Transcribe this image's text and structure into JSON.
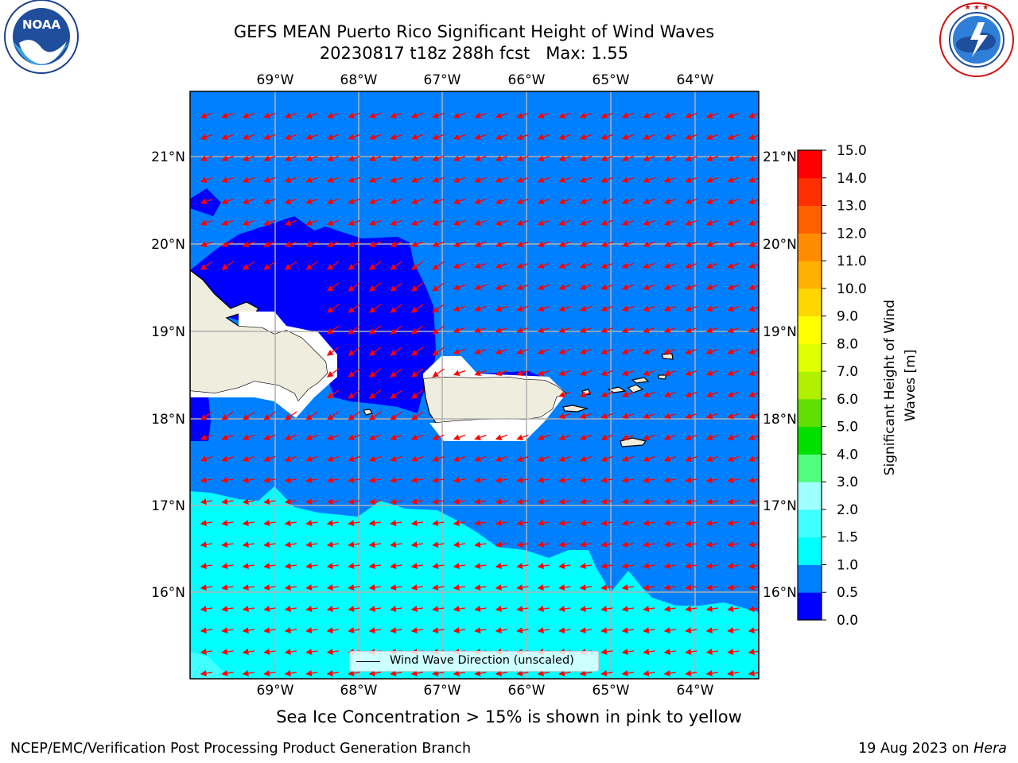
{
  "title": {
    "line1": "GEFS MEAN Puerto Rico Significant Height of Wind Waves",
    "line2": "20230817 t18z 288h fcst   Max: 1.55"
  },
  "logos": {
    "left": {
      "name": "noaa-logo",
      "text": "NOAA",
      "ring_text": "NATIONAL OCEANIC AND ATMOSPHERIC ADMINISTRATION · U.S. DEPARTMENT OF COMMERCE"
    },
    "right": {
      "name": "nws-logo",
      "ring_text": "NATIONAL WEATHER SERVICE"
    }
  },
  "map": {
    "longitude_ticks": [
      "69°W",
      "68°W",
      "67°W",
      "66°W",
      "65°W",
      "64°W"
    ],
    "latitude_ticks": [
      "21°N",
      "20°N",
      "19°N",
      "18°N",
      "17°N",
      "16°N"
    ],
    "lon_range": [
      -70.0,
      -63.25
    ],
    "lat_range": [
      15.0,
      21.75
    ],
    "grid": true,
    "legend_label": "Wind Wave Direction (unscaled)",
    "land_color": "#efedde",
    "coast_color": "#000000",
    "arrow_color": "#ff0000",
    "arrow_direction": "from east, toward west-southwest"
  },
  "colorbar": {
    "label": "Significant Height of Wind Waves [m]",
    "levels": [
      "0.0",
      "0.5",
      "1.0",
      "1.5",
      "2.0",
      "3.0",
      "4.0",
      "5.0",
      "6.0",
      "7.0",
      "8.0",
      "9.0",
      "10.0",
      "11.0",
      "12.0",
      "13.0",
      "14.0",
      "15.0"
    ],
    "colors": [
      "#0000ff",
      "#0080ff",
      "#00ffff",
      "#40ffff",
      "#a0ffff",
      "#50ff80",
      "#00e000",
      "#60e000",
      "#b0f000",
      "#dfff00",
      "#ffff00",
      "#ffd700",
      "#ffb000",
      "#ff8c00",
      "#ff6000",
      "#ff3000",
      "#ff0000"
    ]
  },
  "sea_ice_note": "Sea Ice Concentration > 15% is shown in pink to yellow",
  "footer": {
    "left": "NCEP/EMC/Verification Post Processing Product Generation Branch",
    "right_prefix": "19 Aug 2023 on ",
    "right_machine": "Hera"
  }
}
